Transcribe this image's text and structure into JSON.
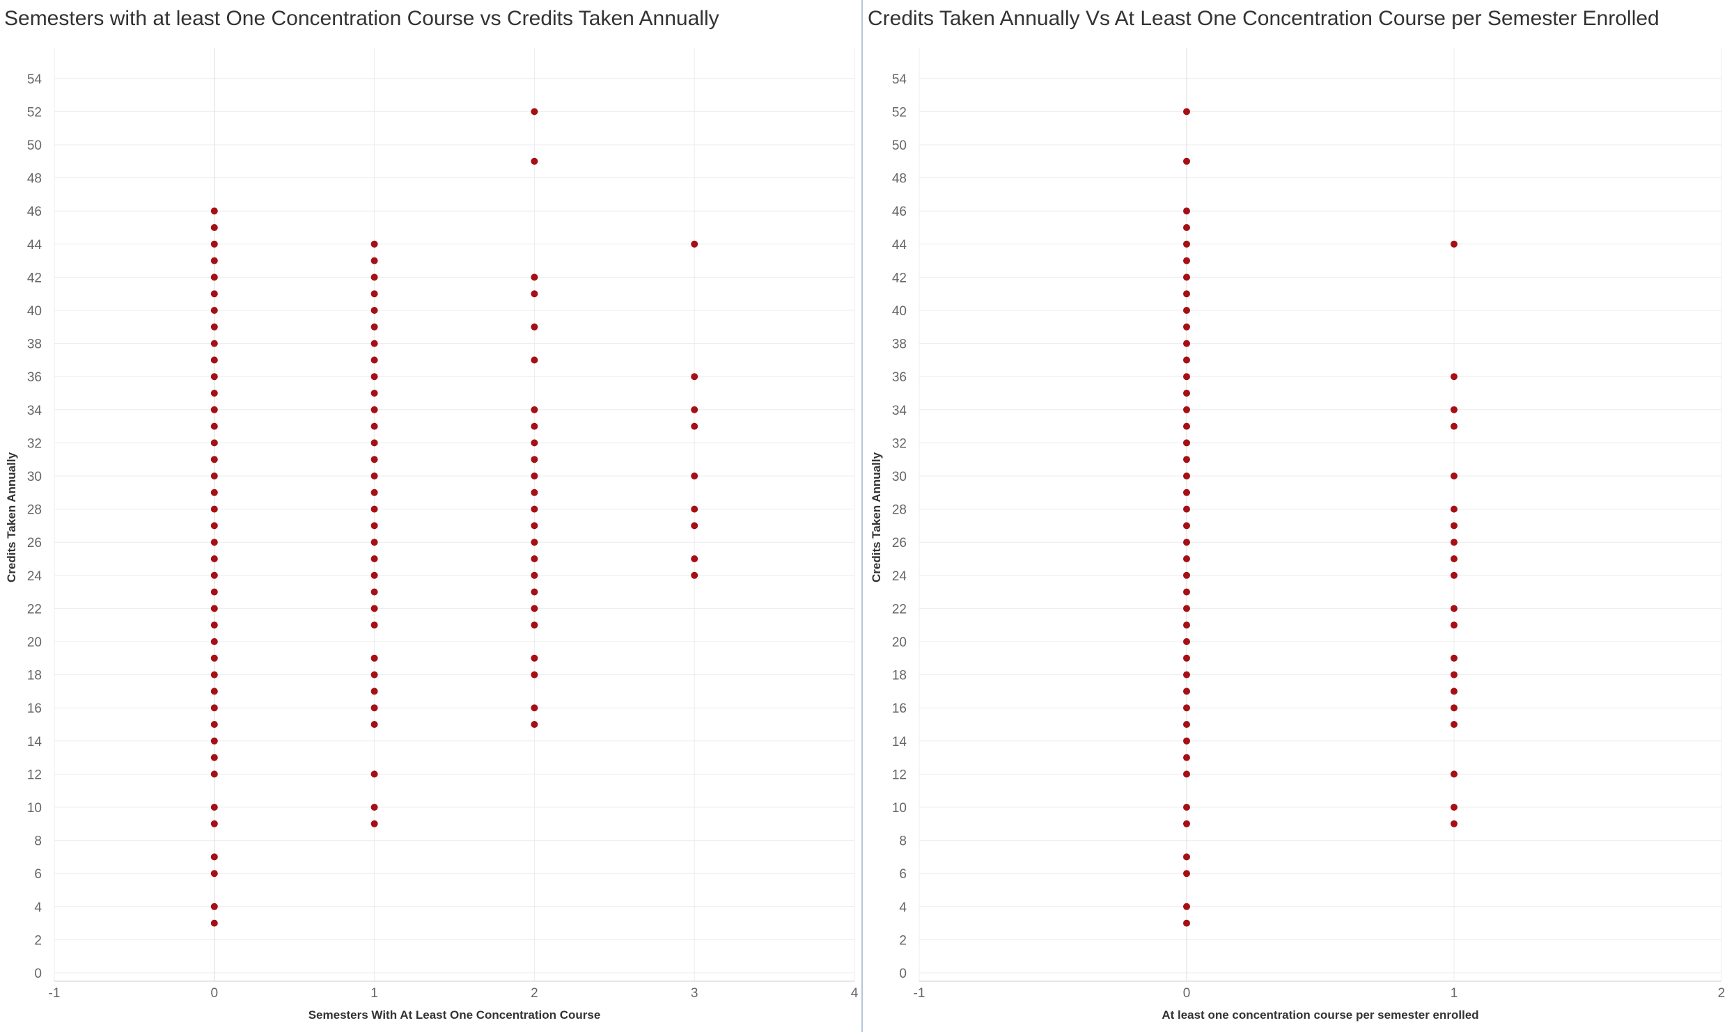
{
  "chart_data": [
    {
      "type": "scatter",
      "title": "Semesters with at least One Concentration Course vs Credits Taken Annually",
      "xlabel": "Semesters With At Least One Concentration Course",
      "ylabel": "Credits Taken Annually",
      "xlim": [
        -1,
        4
      ],
      "ylim": [
        0,
        55
      ],
      "xticks": [
        -1,
        0,
        1,
        2,
        3,
        4
      ],
      "yticks": [
        0,
        2,
        4,
        6,
        8,
        10,
        12,
        14,
        16,
        18,
        20,
        22,
        24,
        26,
        28,
        30,
        32,
        34,
        36,
        38,
        40,
        42,
        44,
        46,
        48,
        50,
        52,
        54
      ],
      "grid": true,
      "marker_color": "#a50f15",
      "series": [
        {
          "points": [
            [
              0,
              3
            ],
            [
              0,
              4
            ],
            [
              0,
              6
            ],
            [
              0,
              7
            ],
            [
              0,
              9
            ],
            [
              0,
              10
            ],
            [
              0,
              12
            ],
            [
              0,
              13
            ],
            [
              0,
              14
            ],
            [
              0,
              15
            ],
            [
              0,
              16
            ],
            [
              0,
              17
            ],
            [
              0,
              18
            ],
            [
              0,
              19
            ],
            [
              0,
              20
            ],
            [
              0,
              21
            ],
            [
              0,
              22
            ],
            [
              0,
              23
            ],
            [
              0,
              24
            ],
            [
              0,
              25
            ],
            [
              0,
              26
            ],
            [
              0,
              27
            ],
            [
              0,
              28
            ],
            [
              0,
              29
            ],
            [
              0,
              30
            ],
            [
              0,
              31
            ],
            [
              0,
              32
            ],
            [
              0,
              33
            ],
            [
              0,
              34
            ],
            [
              0,
              35
            ],
            [
              0,
              36
            ],
            [
              0,
              37
            ],
            [
              0,
              38
            ],
            [
              0,
              39
            ],
            [
              0,
              40
            ],
            [
              0,
              41
            ],
            [
              0,
              42
            ],
            [
              0,
              43
            ],
            [
              0,
              44
            ],
            [
              0,
              45
            ],
            [
              0,
              46
            ],
            [
              1,
              9
            ],
            [
              1,
              10
            ],
            [
              1,
              12
            ],
            [
              1,
              15
            ],
            [
              1,
              16
            ],
            [
              1,
              17
            ],
            [
              1,
              18
            ],
            [
              1,
              19
            ],
            [
              1,
              21
            ],
            [
              1,
              22
            ],
            [
              1,
              23
            ],
            [
              1,
              24
            ],
            [
              1,
              25
            ],
            [
              1,
              26
            ],
            [
              1,
              27
            ],
            [
              1,
              28
            ],
            [
              1,
              29
            ],
            [
              1,
              30
            ],
            [
              1,
              31
            ],
            [
              1,
              32
            ],
            [
              1,
              33
            ],
            [
              1,
              34
            ],
            [
              1,
              35
            ],
            [
              1,
              36
            ],
            [
              1,
              37
            ],
            [
              1,
              38
            ],
            [
              1,
              39
            ],
            [
              1,
              40
            ],
            [
              1,
              41
            ],
            [
              1,
              42
            ],
            [
              1,
              43
            ],
            [
              1,
              44
            ],
            [
              2,
              15
            ],
            [
              2,
              16
            ],
            [
              2,
              18
            ],
            [
              2,
              19
            ],
            [
              2,
              21
            ],
            [
              2,
              22
            ],
            [
              2,
              23
            ],
            [
              2,
              24
            ],
            [
              2,
              25
            ],
            [
              2,
              26
            ],
            [
              2,
              27
            ],
            [
              2,
              28
            ],
            [
              2,
              29
            ],
            [
              2,
              30
            ],
            [
              2,
              31
            ],
            [
              2,
              32
            ],
            [
              2,
              33
            ],
            [
              2,
              34
            ],
            [
              2,
              37
            ],
            [
              2,
              39
            ],
            [
              2,
              41
            ],
            [
              2,
              42
            ],
            [
              2,
              49
            ],
            [
              2,
              52
            ],
            [
              3,
              24
            ],
            [
              3,
              25
            ],
            [
              3,
              27
            ],
            [
              3,
              28
            ],
            [
              3,
              30
            ],
            [
              3,
              33
            ],
            [
              3,
              34
            ],
            [
              3,
              36
            ],
            [
              3,
              44
            ]
          ]
        }
      ]
    },
    {
      "type": "scatter",
      "title": "Credits Taken Annually Vs At Least One Concentration Course per Semester Enrolled",
      "xlabel": "At least one concentration course per semester enrolled",
      "ylabel": "Credits Taken Annually",
      "xlim": [
        -1,
        2
      ],
      "ylim": [
        0,
        55
      ],
      "xticks": [
        -1,
        0,
        1,
        2
      ],
      "yticks": [
        0,
        2,
        4,
        6,
        8,
        10,
        12,
        14,
        16,
        18,
        20,
        22,
        24,
        26,
        28,
        30,
        32,
        34,
        36,
        38,
        40,
        42,
        44,
        46,
        48,
        50,
        52,
        54
      ],
      "grid": true,
      "marker_color": "#a50f15",
      "series": [
        {
          "points": [
            [
              0,
              3
            ],
            [
              0,
              4
            ],
            [
              0,
              6
            ],
            [
              0,
              7
            ],
            [
              0,
              9
            ],
            [
              0,
              10
            ],
            [
              0,
              12
            ],
            [
              0,
              13
            ],
            [
              0,
              14
            ],
            [
              0,
              15
            ],
            [
              0,
              16
            ],
            [
              0,
              17
            ],
            [
              0,
              18
            ],
            [
              0,
              19
            ],
            [
              0,
              20
            ],
            [
              0,
              21
            ],
            [
              0,
              22
            ],
            [
              0,
              23
            ],
            [
              0,
              24
            ],
            [
              0,
              25
            ],
            [
              0,
              26
            ],
            [
              0,
              27
            ],
            [
              0,
              28
            ],
            [
              0,
              29
            ],
            [
              0,
              30
            ],
            [
              0,
              31
            ],
            [
              0,
              32
            ],
            [
              0,
              33
            ],
            [
              0,
              34
            ],
            [
              0,
              35
            ],
            [
              0,
              36
            ],
            [
              0,
              37
            ],
            [
              0,
              38
            ],
            [
              0,
              39
            ],
            [
              0,
              40
            ],
            [
              0,
              41
            ],
            [
              0,
              42
            ],
            [
              0,
              43
            ],
            [
              0,
              44
            ],
            [
              0,
              45
            ],
            [
              0,
              46
            ],
            [
              0,
              49
            ],
            [
              0,
              52
            ],
            [
              1,
              9
            ],
            [
              1,
              10
            ],
            [
              1,
              12
            ],
            [
              1,
              15
            ],
            [
              1,
              16
            ],
            [
              1,
              17
            ],
            [
              1,
              18
            ],
            [
              1,
              19
            ],
            [
              1,
              21
            ],
            [
              1,
              22
            ],
            [
              1,
              24
            ],
            [
              1,
              25
            ],
            [
              1,
              26
            ],
            [
              1,
              27
            ],
            [
              1,
              28
            ],
            [
              1,
              30
            ],
            [
              1,
              33
            ],
            [
              1,
              34
            ],
            [
              1,
              36
            ],
            [
              1,
              44
            ]
          ]
        }
      ]
    }
  ]
}
